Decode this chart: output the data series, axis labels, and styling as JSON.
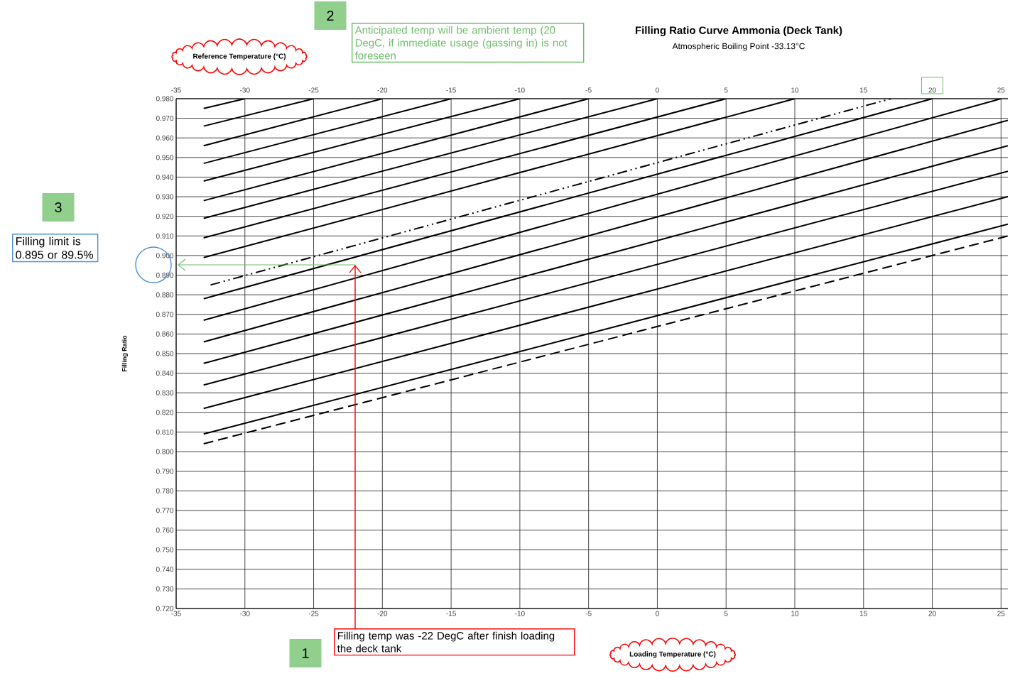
{
  "chart_data": {
    "type": "line",
    "title": "Filling Ratio Curve Ammonia (Deck Tank)",
    "subtitle": "Atmospheric Boiling Point -33.13°C",
    "xlabel": "Loading Temperature (°C)",
    "x2label": "Reference Temperature (°C)",
    "ylabel": "Filling Ratio",
    "xlim": [
      -35,
      25.5
    ],
    "xticks": [
      -35,
      -30,
      -25,
      -20,
      -15,
      -10,
      -5,
      0,
      5,
      10,
      15,
      20,
      25
    ],
    "x2lim": [
      -35,
      25.5
    ],
    "x2ticks": [
      -35,
      -30,
      -25,
      -20,
      -15,
      -10,
      -5,
      0,
      5,
      10,
      15,
      20,
      25
    ],
    "ylim": [
      0.72,
      0.98
    ],
    "yticks": [
      {
        "value": 0.72,
        "label": "0.720"
      },
      {
        "value": 0.73,
        "label": "0.730"
      },
      {
        "value": 0.74,
        "label": "0.740"
      },
      {
        "value": 0.75,
        "label": "0.750"
      },
      {
        "value": 0.76,
        "label": "0.760"
      },
      {
        "value": 0.77,
        "label": "0.770"
      },
      {
        "value": 0.78,
        "label": "0.780"
      },
      {
        "value": 0.79,
        "label": "0.790"
      },
      {
        "value": 0.8,
        "label": "0.800"
      },
      {
        "value": 0.81,
        "label": "0.810"
      },
      {
        "value": 0.82,
        "label": "0.820"
      },
      {
        "value": 0.83,
        "label": "0.830"
      },
      {
        "value": 0.84,
        "label": "0.840"
      },
      {
        "value": 0.85,
        "label": "0.850"
      },
      {
        "value": 0.86,
        "label": "0.860"
      },
      {
        "value": 0.87,
        "label": "0.870"
      },
      {
        "value": 0.88,
        "label": "0.880"
      },
      {
        "value": 0.89,
        "label": "0.890"
      },
      {
        "value": 0.9,
        "label": "0.900"
      },
      {
        "value": 0.91,
        "label": "0.910"
      },
      {
        "value": 0.92,
        "label": "0.920"
      },
      {
        "value": 0.93,
        "label": "0.930"
      },
      {
        "value": 0.94,
        "label": "0.940"
      },
      {
        "value": 0.95,
        "label": "0.950"
      },
      {
        "value": 0.96,
        "label": "0.960"
      },
      {
        "value": 0.97,
        "label": "0.970"
      },
      {
        "value": 0.98,
        "label": "0.980"
      }
    ],
    "grid": true,
    "series": [
      {
        "color": "#000000",
        "line_style": "solid",
        "x": [
          -33,
          -30
        ],
        "values": [
          0.975,
          0.98
        ]
      },
      {
        "color": "#000000",
        "line_style": "solid",
        "x": [
          -33,
          -25
        ],
        "values": [
          0.966,
          0.98
        ]
      },
      {
        "color": "#000000",
        "line_style": "solid",
        "x": [
          -33,
          -20
        ],
        "values": [
          0.956,
          0.98
        ]
      },
      {
        "color": "#000000",
        "line_style": "solid",
        "x": [
          -33,
          -15
        ],
        "values": [
          0.947,
          0.98
        ]
      },
      {
        "color": "#000000",
        "line_style": "solid",
        "x": [
          -33,
          -10
        ],
        "values": [
          0.938,
          0.98
        ]
      },
      {
        "color": "#000000",
        "line_style": "solid",
        "x": [
          -33,
          -5
        ],
        "values": [
          0.928,
          0.98
        ]
      },
      {
        "color": "#000000",
        "line_style": "solid",
        "x": [
          -33,
          0
        ],
        "values": [
          0.919,
          0.98
        ]
      },
      {
        "color": "#000000",
        "line_style": "solid",
        "x": [
          -33,
          5
        ],
        "values": [
          0.909,
          0.98
        ]
      },
      {
        "color": "#000000",
        "line_style": "solid",
        "x": [
          -33,
          10
        ],
        "values": [
          0.899,
          0.98
        ]
      },
      {
        "color": "#000000",
        "line_style": "dotted",
        "x": [
          -32.5,
          17
        ],
        "values": [
          0.885,
          0.98
        ]
      },
      {
        "color": "#000000",
        "line_style": "solid",
        "x": [
          -33,
          20
        ],
        "values": [
          0.878,
          0.98
        ]
      },
      {
        "color": "#000000",
        "line_style": "solid",
        "x": [
          -33,
          25
        ],
        "values": [
          0.867,
          0.98
        ]
      },
      {
        "color": "#000000",
        "line_style": "solid",
        "x": [
          -33,
          25.5
        ],
        "values": [
          0.856,
          0.969
        ]
      },
      {
        "color": "#000000",
        "line_style": "solid",
        "x": [
          -33,
          25.5
        ],
        "values": [
          0.845,
          0.956
        ]
      },
      {
        "color": "#000000",
        "line_style": "solid",
        "x": [
          -33,
          25.5
        ],
        "values": [
          0.834,
          0.943
        ]
      },
      {
        "color": "#000000",
        "line_style": "solid",
        "x": [
          -33,
          25.5
        ],
        "values": [
          0.822,
          0.93
        ]
      },
      {
        "color": "#000000",
        "line_style": "solid",
        "x": [
          -33,
          25.5
        ],
        "values": [
          0.809,
          0.916
        ]
      },
      {
        "color": "#000000",
        "line_style": "dashed",
        "x": [
          -33,
          25.5
        ],
        "values": [
          0.804,
          0.91
        ]
      }
    ],
    "annotations": [
      "1",
      "Filling temp was -22 DegC after finish loading the deck tank",
      "2",
      "Anticipated temp will be ambient temp (20 DegC, if immediate usage (gassing in) is not foreseen",
      "3",
      "Filling limit is 0.895 or 89.5%"
    ]
  }
}
